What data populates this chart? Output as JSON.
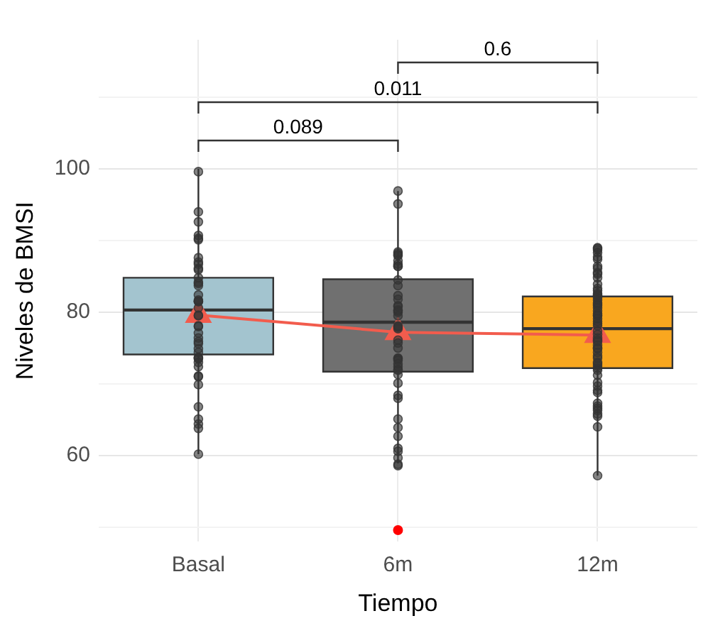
{
  "chart_data": {
    "type": "box",
    "xlabel": "Tiempo",
    "ylabel": "Niveles de BMSI",
    "categories": [
      "Basal",
      "6m",
      "12m"
    ],
    "colors": [
      "#a3c4cf",
      "#707070",
      "#f9a71f"
    ],
    "boxes": [
      {
        "low": 60.2,
        "q1": 74.1,
        "median": 80.3,
        "q3": 84.8,
        "high": 100
      },
      {
        "low": 58.9,
        "q1": 71.7,
        "median": 78.6,
        "q3": 84.6,
        "high": 96.9,
        "outliers": [
          49.6
        ]
      },
      {
        "low": 57.2,
        "q1": 72.2,
        "median": 77.7,
        "q3": 82.2,
        "high": 89.0
      }
    ],
    "series": [
      {
        "type": "scatter",
        "color": "#333333",
        "x": [
          "Basal",
          "Basal",
          "Basal",
          "Basal",
          "Basal",
          "Basal",
          "Basal",
          "Basal",
          "Basal",
          "Basal",
          "Basal",
          "Basal",
          "Basal",
          "Basal",
          "Basal",
          "Basal",
          "Basal",
          "Basal",
          "Basal",
          "Basal",
          "Basal",
          "Basal",
          "Basal",
          "Basal",
          "Basal",
          "Basal",
          "Basal",
          "Basal",
          "Basal",
          "Basal",
          "Basal",
          "Basal",
          "Basal",
          "Basal",
          "Basal",
          "Basal",
          "Basal",
          "Basal",
          "Basal",
          "Basal",
          "Basal",
          "Basal",
          "Basal",
          "Basal",
          "6m",
          "6m",
          "6m",
          "6m",
          "6m",
          "6m",
          "6m",
          "6m",
          "6m",
          "6m",
          "6m",
          "6m",
          "6m",
          "6m",
          "6m",
          "6m",
          "6m",
          "6m",
          "6m",
          "6m",
          "6m",
          "6m",
          "6m",
          "6m",
          "6m",
          "6m",
          "6m",
          "6m",
          "6m",
          "6m",
          "6m",
          "6m",
          "6m",
          "6m",
          "6m",
          "6m",
          "6m",
          "6m",
          "6m",
          "6m",
          "6m",
          "6m",
          "6m",
          "6m",
          "6m",
          "6m",
          "12m",
          "12m",
          "12m",
          "12m",
          "12m",
          "12m",
          "12m",
          "12m",
          "12m",
          "12m",
          "12m",
          "12m",
          "12m",
          "12m",
          "12m",
          "12m",
          "12m",
          "12m",
          "12m",
          "12m",
          "12m",
          "12m",
          "12m",
          "12m",
          "12m",
          "12m",
          "12m",
          "12m",
          "12m",
          "12m",
          "12m",
          "12m",
          "12m",
          "12m",
          "12m",
          "12m",
          "12m",
          "12m",
          "12m",
          "12m",
          "12m",
          "12m",
          "12m",
          "12m",
          "12m",
          "12m",
          "12m",
          "12m",
          "12m",
          "12m",
          "12m",
          "12m",
          "12m",
          "12m",
          "12m",
          "12m",
          "12m",
          "12m",
          "12m",
          "12m"
        ],
        "marker": "circle",
        "values": [
          99.6,
          94.0,
          92.6,
          90.1,
          90.7,
          90.3,
          87.6,
          87.0,
          86.7,
          86.1,
          84.8,
          85.9,
          84.2,
          84.0,
          83.7,
          82.4,
          81.7,
          81.5,
          81.5,
          80.6,
          79.6,
          79.5,
          78.1,
          78.0,
          77.1,
          76.4,
          75.9,
          75.6,
          74.9,
          74.4,
          73.7,
          73.6,
          73.5,
          73.0,
          72.4,
          71.0,
          71.1,
          69.9,
          66.8,
          65.1,
          64.4,
          63.8,
          60.2,
          81.5,
          96.9,
          95.1,
          88.4,
          88.2,
          88.0,
          87.9,
          87.2,
          86.7,
          86.4,
          86.4,
          84.5,
          83.7,
          82.3,
          81.8,
          80.9,
          80.8,
          80.3,
          80.2,
          80.0,
          79.5,
          78.1,
          78.0,
          77.9,
          77.7,
          76.1,
          75.7,
          75.0,
          73.6,
          73.5,
          73.3,
          72.8,
          72.4,
          72.0,
          71.9,
          71.3,
          70.1,
          68.4,
          68.0,
          65.1,
          63.9,
          62.7,
          61.0,
          60.6,
          59.7,
          58.8,
          58.6,
          89.0,
          88.9,
          88.7,
          88.3,
          87.7,
          87.4,
          86.4,
          86.1,
          85.5,
          85.3,
          84.8,
          83.9,
          83.3,
          83.0,
          82.6,
          82.4,
          82.3,
          82.0,
          81.7,
          81.3,
          81.1,
          80.9,
          80.6,
          80.2,
          79.8,
          79.6,
          79.5,
          79.1,
          78.7,
          78.4,
          78.1,
          77.4,
          76.9,
          76.4,
          76.1,
          75.9,
          75.4,
          75.0,
          74.9,
          74.4,
          73.9,
          73.6,
          73.0,
          72.8,
          72.5,
          72.2,
          71.9,
          71.2,
          70.2,
          69.7,
          69.1,
          68.8,
          67.3,
          66.9,
          66.6,
          66.3,
          65.8,
          65.5,
          64.0,
          57.2
        ]
      },
      {
        "type": "line",
        "color": "#f25c4d",
        "marker": "triangle",
        "values": [
          79.6,
          77.2,
          76.8
        ]
      }
    ],
    "annotations": [
      "0.089",
      "0.011",
      "0.6"
    ],
    "ylim": [
      48,
      118
    ],
    "yticks": [
      {
        "value": 50,
        "label": null
      },
      60,
      {
        "value": 70,
        "label": null
      },
      80,
      {
        "value": 90,
        "label": null
      },
      100,
      {
        "value": 110,
        "label": null
      }
    ],
    "grid": true,
    "legend": false
  }
}
